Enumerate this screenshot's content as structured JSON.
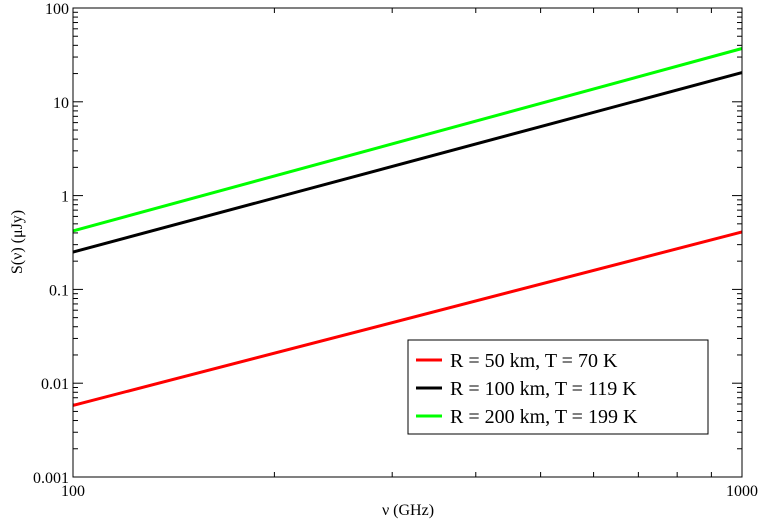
{
  "chart_data": {
    "type": "line",
    "xlabel": "ν (GHz)",
    "ylabel": "S(ν) (μJy)",
    "xscale": "log",
    "yscale": "log",
    "xlim": [
      100,
      1000
    ],
    "ylim": [
      0.001,
      100
    ],
    "xticks": [
      {
        "value": 100,
        "label": "100"
      },
      {
        "value": 1000,
        "label": "1000"
      }
    ],
    "yticks": [
      {
        "value": 0.001,
        "label": "0.001"
      },
      {
        "value": 0.01,
        "label": "0.01"
      },
      {
        "value": 0.1,
        "label": "0.1"
      },
      {
        "value": 1,
        "label": "1"
      },
      {
        "value": 10,
        "label": "10"
      },
      {
        "value": 100,
        "label": "100"
      }
    ],
    "grid": false,
    "legend_position": "bottom-right",
    "series": [
      {
        "name": "R = 50 km, T = 70 K",
        "color": "#ff0000",
        "x": [
          100,
          1000
        ],
        "y": [
          0.0058,
          0.41
        ]
      },
      {
        "name": "R = 100 km, T = 119 K",
        "color": "#000000",
        "x": [
          100,
          1000
        ],
        "y": [
          0.25,
          20.5
        ]
      },
      {
        "name": "R = 200 km, T = 199 K",
        "color": "#00ff00",
        "x": [
          100,
          1000
        ],
        "y": [
          0.42,
          37
        ]
      }
    ]
  }
}
